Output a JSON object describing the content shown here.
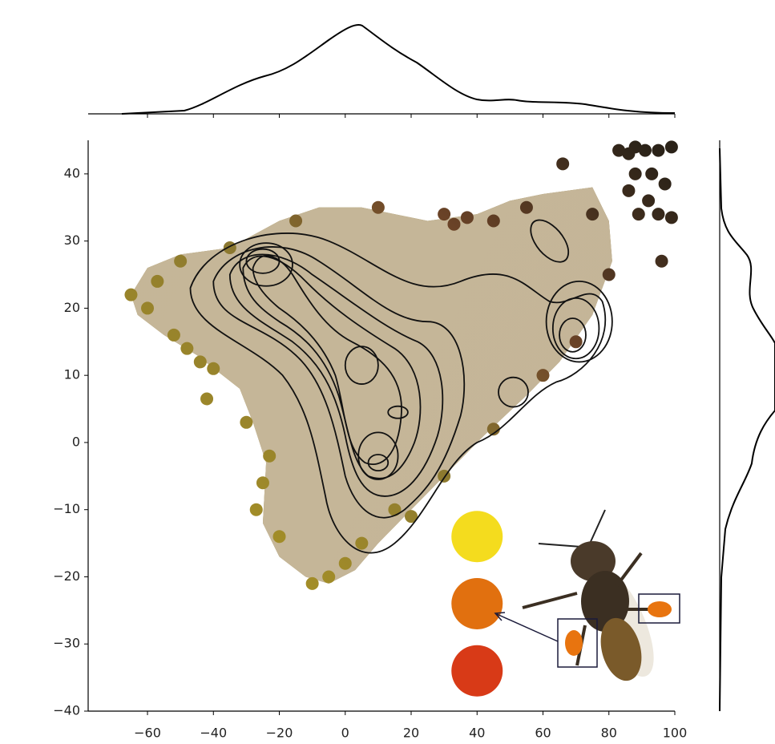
{
  "chart_data": {
    "type": "scatter",
    "xlim": [
      -78,
      100
    ],
    "ylim": [
      -40,
      45
    ],
    "xticks": [
      {
        "value": -60,
        "label": "−60"
      },
      {
        "value": -40,
        "label": "−40"
      },
      {
        "value": -20,
        "label": "−20"
      },
      0,
      20,
      40,
      60,
      80,
      100
    ],
    "yticks": [
      {
        "value": -40,
        "label": "−40"
      },
      {
        "value": -30,
        "label": "−30"
      },
      {
        "value": -20,
        "label": "−20"
      },
      {
        "value": -10,
        "label": "−10"
      },
      0,
      10,
      20,
      30,
      40
    ],
    "series": [
      {
        "x": [
          66,
          83,
          86,
          88,
          91,
          95,
          99,
          88,
          93,
          97,
          86,
          92,
          89,
          95,
          99,
          96,
          30,
          33,
          37,
          45,
          -30,
          -42,
          -44,
          -40,
          -52,
          -48,
          -60,
          -65,
          -57,
          -50,
          -10,
          -5,
          0,
          -20,
          -25,
          15,
          30,
          45,
          60,
          70,
          80,
          75,
          55,
          10,
          -15,
          -35,
          20,
          5,
          -27,
          -23
        ],
        "y": [
          41.5,
          43.5,
          43,
          44,
          43.5,
          43.5,
          44,
          40,
          40,
          38.5,
          37.5,
          36,
          34,
          34,
          33.5,
          27,
          34,
          32.5,
          33.5,
          33,
          3,
          6.5,
          12,
          11,
          16,
          14,
          20,
          22,
          24,
          27,
          -21,
          -20,
          -18,
          -14,
          -6,
          -10,
          -5,
          2,
          10,
          15,
          25,
          34,
          35,
          35,
          33,
          29,
          -11,
          -15,
          -10,
          -2
        ]
      }
    ],
    "highlights": {
      "x": [
        40,
        40,
        40
      ],
      "y": [
        -14,
        -24,
        -34
      ],
      "colors": [
        "#f4dc1e",
        "#e1700f",
        "#d83a17"
      ]
    }
  }
}
